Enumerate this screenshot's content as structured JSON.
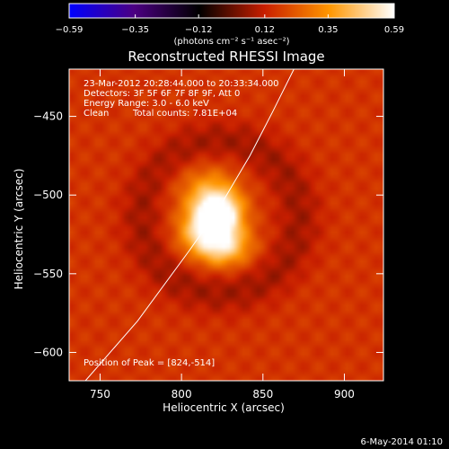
{
  "chart_data": {
    "type": "heatmap",
    "title": "Reconstructed RHESSI Image",
    "xlabel": "Heliocentric X (arcsec)",
    "ylabel": "Heliocentric Y (arcsec)",
    "xlim": [
      731,
      924
    ],
    "ylim": [
      -618,
      -420
    ],
    "x_ticks": [
      750,
      800,
      850,
      900
    ],
    "y_ticks": [
      -450,
      -500,
      -550,
      -600
    ],
    "x_tick_labels": [
      "750",
      "800",
      "850",
      "900"
    ],
    "y_tick_labels": [
      "−450",
      "−500",
      "−550",
      "−600"
    ],
    "colorbar": {
      "min": -0.59,
      "max": 0.59,
      "ticks": [
        -0.59,
        -0.35,
        -0.12,
        0.12,
        0.35,
        0.59
      ],
      "tick_labels": [
        "−0.59",
        "−0.35",
        "−0.12",
        "0.12",
        "0.35",
        "0.59"
      ],
      "units": "(photons cm⁻² s⁻¹ asec⁻²)",
      "stops": [
        "#0000ff",
        "#4b0082",
        "#000000",
        "#c81e00",
        "#ff9600",
        "#ffffff"
      ]
    },
    "info": {
      "time_range": "23-Mar-2012 20:28:44.000 to 20:33:34.000",
      "detectors": "Detectors: 3F 5F 6F 7F 8F 9F, Att 0",
      "energy_range": "Energy Range: 3.0 - 6.0 keV",
      "method": "Clean",
      "total_counts": "Total counts: 7.81E+04"
    },
    "peak": {
      "label": "Position of Peak = [824,-514]",
      "x": 824,
      "y": -514
    },
    "limb_line": [
      {
        "x": 741,
        "y": -618
      },
      {
        "x": 773,
        "y": -580
      },
      {
        "x": 805,
        "y": -535
      },
      {
        "x": 822,
        "y": -510
      },
      {
        "x": 842,
        "y": -475
      },
      {
        "x": 856,
        "y": -447
      },
      {
        "x": 869,
        "y": -420
      }
    ],
    "sources": [
      {
        "x": 822,
        "y": -512,
        "amp": 0.57,
        "sx": 10,
        "sy": 10
      },
      {
        "x": 826,
        "y": -533,
        "amp": 0.3,
        "sx": 12,
        "sy": 9
      },
      {
        "x": 812,
        "y": -524,
        "amp": 0.22,
        "sx": 11,
        "sy": 10
      },
      {
        "x": 815,
        "y": -495,
        "amp": 0.15,
        "sx": 14,
        "sy": 11
      }
    ],
    "background_level": 0.16
  },
  "footer": {
    "date": "6-May-2014 01:10"
  }
}
